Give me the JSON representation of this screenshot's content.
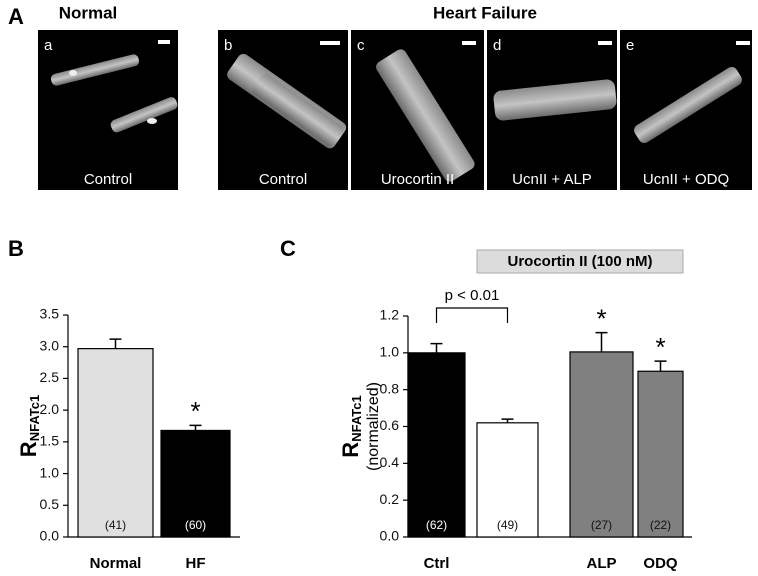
{
  "panel_a": {
    "letter": "A",
    "group_normal": "Normal",
    "group_hf": "Heart Failure",
    "images": [
      {
        "letter": "a",
        "caption": "Control"
      },
      {
        "letter": "b",
        "caption": "Control"
      },
      {
        "letter": "c",
        "caption": "Urocortin II"
      },
      {
        "letter": "d",
        "caption": "UcnII + ALP"
      },
      {
        "letter": "e",
        "caption": "UcnII + ODQ"
      }
    ]
  },
  "chart_data": [
    {
      "type": "bar",
      "panel": "B",
      "y_label": "R",
      "y_label_sub": "NFATc1",
      "categories": [
        "Normal",
        "HF"
      ],
      "values": [
        2.97,
        1.68
      ],
      "errors": [
        0.15,
        0.08
      ],
      "colors": [
        "#e0e0e0",
        "#000000"
      ],
      "n_labels": [
        "(41)",
        "(60)"
      ],
      "significance": [
        null,
        "*"
      ],
      "ylim": [
        0,
        3.5
      ],
      "yticks": [
        {
          "value": 0,
          "label": "0.0"
        },
        0.5,
        {
          "value": 1,
          "label": "1.0"
        },
        1.5,
        {
          "value": 2,
          "label": "2.0"
        },
        2.5,
        {
          "value": 3,
          "label": "3.0"
        },
        3.5
      ]
    },
    {
      "type": "bar",
      "panel": "C",
      "y_label": "R",
      "y_label_sub": "NFATc1",
      "y_label_note": "(normalized)",
      "categories": [
        "Ctrl",
        null,
        "ALP",
        "ODQ"
      ],
      "values": [
        1.0,
        0.62,
        1.005,
        0.9
      ],
      "errors": [
        0.05,
        0.02,
        0.105,
        0.055
      ],
      "colors": [
        "#000000",
        "#ffffff",
        "#808080",
        "#808080"
      ],
      "n_labels": [
        "(62)",
        "(49)",
        "(27)",
        "(22)"
      ],
      "significance": [
        null,
        null,
        "*",
        "*"
      ],
      "annotation": "p < 0.01",
      "treatment_label": "Urocortin II (100 nM)",
      "ylim": [
        0,
        1.2
      ],
      "yticks": [
        {
          "value": 0,
          "label": "0.0"
        },
        0.2,
        0.4,
        0.6,
        0.8,
        {
          "value": 1,
          "label": "1.0"
        },
        1.2
      ]
    }
  ]
}
